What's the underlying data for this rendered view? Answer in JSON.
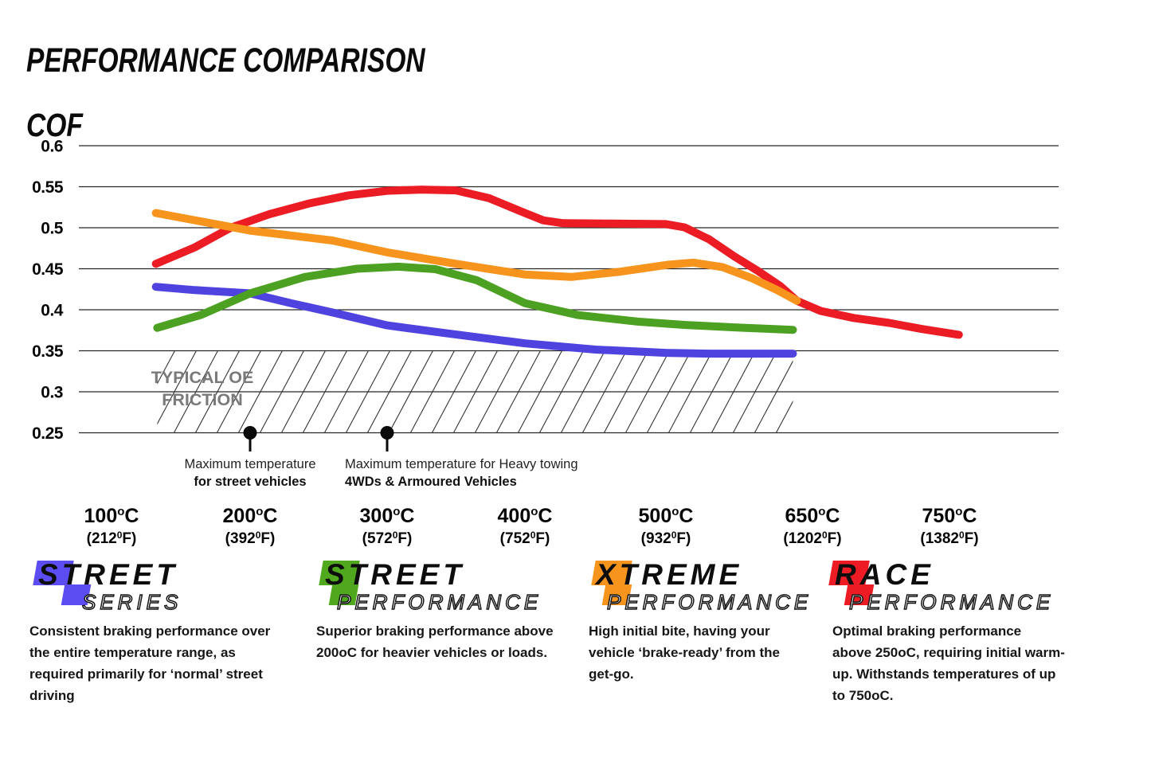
{
  "page": {
    "title": "PERFORMANCE COMPARISON",
    "y_axis_title": "COF"
  },
  "chart_data": {
    "type": "line",
    "title": "PERFORMANCE COMPARISON",
    "ylabel": "COF",
    "ylim": [
      0.25,
      0.6
    ],
    "grid": "horizontal",
    "y_ticks": [
      0.6,
      0.55,
      0.5,
      0.45,
      0.4,
      0.35,
      0.3,
      0.25
    ],
    "y_tick_labels": [
      "0.6",
      "0.55",
      "0.5",
      "0.45",
      "0.4",
      "0.35",
      "0.3",
      "0.25"
    ],
    "x_ticks": [
      {
        "temp": 100,
        "c": "100",
        "f": "212"
      },
      {
        "temp": 200,
        "c": "200",
        "f": "392"
      },
      {
        "temp": 300,
        "c": "300",
        "f": "572"
      },
      {
        "temp": 400,
        "c": "400",
        "f": "752"
      },
      {
        "temp": 500,
        "c": "500",
        "f": "932"
      },
      {
        "temp": 650,
        "c": "650",
        "f": "1202"
      },
      {
        "temp": 750,
        "c": "750",
        "f": "1382"
      }
    ],
    "series": [
      {
        "name": "Street Series",
        "color": "#4f43e0",
        "points": [
          [
            132,
            0.428
          ],
          [
            160,
            0.424
          ],
          [
            200,
            0.42
          ],
          [
            230,
            0.408
          ],
          [
            262,
            0.396
          ],
          [
            300,
            0.381
          ],
          [
            340,
            0.372
          ],
          [
            400,
            0.359
          ],
          [
            450,
            0.3515
          ],
          [
            500,
            0.3475
          ],
          [
            545,
            0.3465
          ],
          [
            630,
            0.3465
          ]
        ]
      },
      {
        "name": "Street Performance",
        "color": "#4ca122",
        "points": [
          [
            133,
            0.378
          ],
          [
            165,
            0.394
          ],
          [
            200,
            0.42
          ],
          [
            240,
            0.44
          ],
          [
            278,
            0.45
          ],
          [
            308,
            0.4525
          ],
          [
            335,
            0.4495
          ],
          [
            365,
            0.436
          ],
          [
            400,
            0.408
          ],
          [
            438,
            0.3935
          ],
          [
            480,
            0.3855
          ],
          [
            520,
            0.3815
          ],
          [
            570,
            0.3785
          ],
          [
            630,
            0.3755
          ]
        ]
      },
      {
        "name": "Race Performance",
        "color": "#ec1c24",
        "points": [
          [
            132,
            0.456
          ],
          [
            160,
            0.476
          ],
          [
            186,
            0.5
          ],
          [
            214,
            0.5165
          ],
          [
            244,
            0.53
          ],
          [
            272,
            0.5395
          ],
          [
            300,
            0.545
          ],
          [
            325,
            0.5465
          ],
          [
            350,
            0.5455
          ],
          [
            374,
            0.536
          ],
          [
            400,
            0.518
          ],
          [
            413,
            0.509
          ],
          [
            427,
            0.5055
          ],
          [
            462,
            0.505
          ],
          [
            500,
            0.5045
          ],
          [
            519,
            0.5005
          ],
          [
            544,
            0.486
          ],
          [
            570,
            0.465
          ],
          [
            594,
            0.4475
          ],
          [
            617,
            0.429
          ],
          [
            634,
            0.411
          ],
          [
            656,
            0.3985
          ],
          [
            680,
            0.39
          ],
          [
            706,
            0.384
          ],
          [
            730,
            0.3765
          ],
          [
            757,
            0.3695
          ]
        ]
      },
      {
        "name": "Xtreme Performance",
        "color": "#f7941d",
        "points": [
          [
            132,
            0.518
          ],
          [
            200,
            0.4965
          ],
          [
            260,
            0.4845
          ],
          [
            300,
            0.47
          ],
          [
            350,
            0.456
          ],
          [
            400,
            0.443
          ],
          [
            433,
            0.44
          ],
          [
            468,
            0.4465
          ],
          [
            503,
            0.455
          ],
          [
            528,
            0.4575
          ],
          [
            558,
            0.452
          ],
          [
            588,
            0.4385
          ],
          [
            614,
            0.424
          ],
          [
            634,
            0.411
          ]
        ]
      }
    ],
    "oe_band": {
      "label_line1": "TYPICAL OE",
      "label_line2": "FRICTION",
      "cof_min": 0.25,
      "cof_max": 0.35,
      "temp_start": 133,
      "temp_end": 630
    },
    "annotations": [
      {
        "temp": 200,
        "align": "center",
        "line1": "Maximum temperature",
        "line2": "for street vehicles"
      },
      {
        "temp": 300,
        "align": "left",
        "line1": "Maximum temperature for Heavy towing",
        "line2": "4WDs & Armoured Vehicles"
      }
    ]
  },
  "legend": {
    "cards": [
      {
        "word_top": "STREET",
        "word_bottom": "SERIES",
        "color": "#5b4df1",
        "desc_lines": [
          "Consistent braking performance over",
          "the entire temperature range, as",
          "required primarily for ‘normal’ street",
          "driving"
        ]
      },
      {
        "word_top": "STREET",
        "word_bottom": "PERFORMANCE",
        "color": "#4fa81e",
        "desc_lines": [
          "Superior braking performance above",
          "200oC for heavier vehicles or loads."
        ]
      },
      {
        "word_top": "XTREME",
        "word_bottom": "PERFORMANCE",
        "color": "#f7941d",
        "desc_lines": [
          "High initial bite, having your",
          "vehicle ‘brake-ready’ from the",
          "get-go."
        ]
      },
      {
        "word_top": "RACE",
        "word_bottom": "PERFORMANCE",
        "color": "#ed1c24",
        "desc_lines": [
          "Optimal braking performance",
          "above 250oC, requiring initial warm-",
          "up. Withstands temperatures of up",
          "to 750oC."
        ]
      }
    ]
  }
}
